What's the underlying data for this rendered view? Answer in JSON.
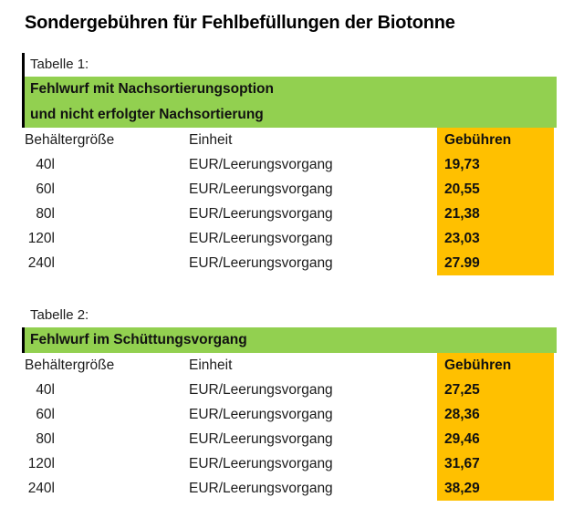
{
  "page": {
    "title": "Sondergebühren für Fehlbefüllungen der Biotonne"
  },
  "colors": {
    "banner_green": "#92D050",
    "fee_orange": "#FFC000",
    "border_black": "#000000"
  },
  "tables": [
    {
      "label": "Tabelle 1:",
      "banner_lines": [
        "Fehlwurf mit Nachsortierungsoption",
        "und nicht erfolgter Nachsortierung"
      ],
      "columns": {
        "size": "Behältergröße",
        "unit": "Einheit",
        "fee": "Gebühren"
      },
      "rows": [
        {
          "size": "40l",
          "unit": "EUR/Leerungsvorgang",
          "fee": "19,73"
        },
        {
          "size": "60l",
          "unit": "EUR/Leerungsvorgang",
          "fee": "20,55"
        },
        {
          "size": "80l",
          "unit": "EUR/Leerungsvorgang",
          "fee": "21,38"
        },
        {
          "size": "120l",
          "unit": "EUR/Leerungsvorgang",
          "fee": "23,03"
        },
        {
          "size": "240l",
          "unit": "EUR/Leerungsvorgang",
          "fee": "27.99"
        }
      ]
    },
    {
      "label": "Tabelle 2:",
      "banner_lines": [
        "Fehlwurf im Schüttungsvorgang"
      ],
      "columns": {
        "size": "Behältergröße",
        "unit": "Einheit",
        "fee": "Gebühren"
      },
      "rows": [
        {
          "size": "40l",
          "unit": "EUR/Leerungsvorgang",
          "fee": "27,25"
        },
        {
          "size": "60l",
          "unit": "EUR/Leerungsvorgang",
          "fee": "28,36"
        },
        {
          "size": "80l",
          "unit": "EUR/Leerungsvorgang",
          "fee": "29,46"
        },
        {
          "size": "120l",
          "unit": "EUR/Leerungsvorgang",
          "fee": "31,67"
        },
        {
          "size": "240l",
          "unit": "EUR/Leerungsvorgang",
          "fee": "38,29"
        }
      ]
    }
  ]
}
